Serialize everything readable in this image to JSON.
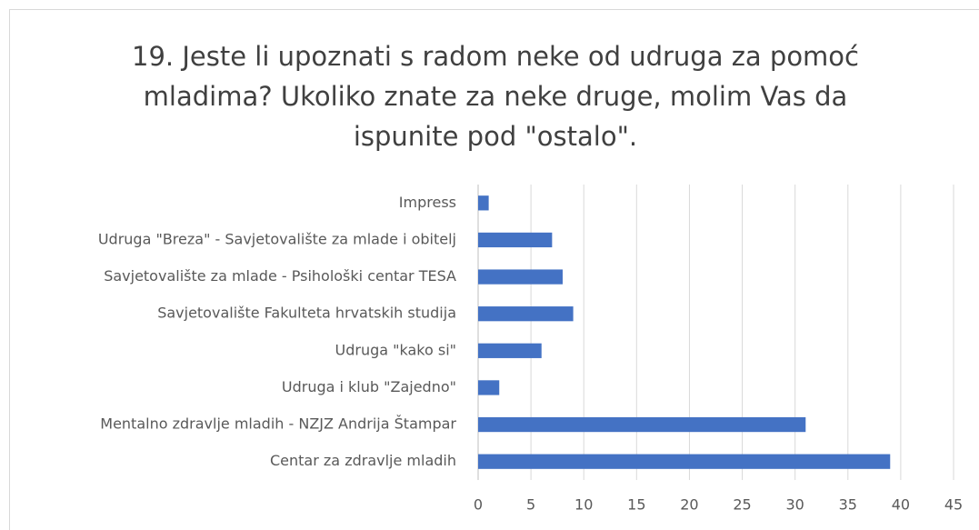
{
  "chart_data": {
    "type": "barh",
    "title": "19. Jeste li upoznati s radom neke od udruga za pomoć mladima? Ukoliko znate za neke druge, molim Vas da ispunite pod \"ostalo\".",
    "categories": [
      "Impress",
      "Udruga \"Breza\" - Savjetovalište za mlade i obitelj",
      "Savjetovalište za mlade - Psihološki centar TESA",
      "Savjetovalište Fakulteta hrvatskih studija",
      "Udruga \"kako si\"",
      "Udruga i klub \"Zajedno\"",
      "Mentalno zdravlje mladih - NZJZ Andrija Štampar",
      "Centar za zdravlje mladih"
    ],
    "values": [
      1,
      7,
      8,
      9,
      6,
      2,
      31,
      39
    ],
    "color": "#4472c4",
    "xlim": [
      0,
      45
    ],
    "xticks": [
      0,
      5,
      10,
      15,
      20,
      25,
      30,
      35,
      40,
      45
    ],
    "grid": true
  }
}
